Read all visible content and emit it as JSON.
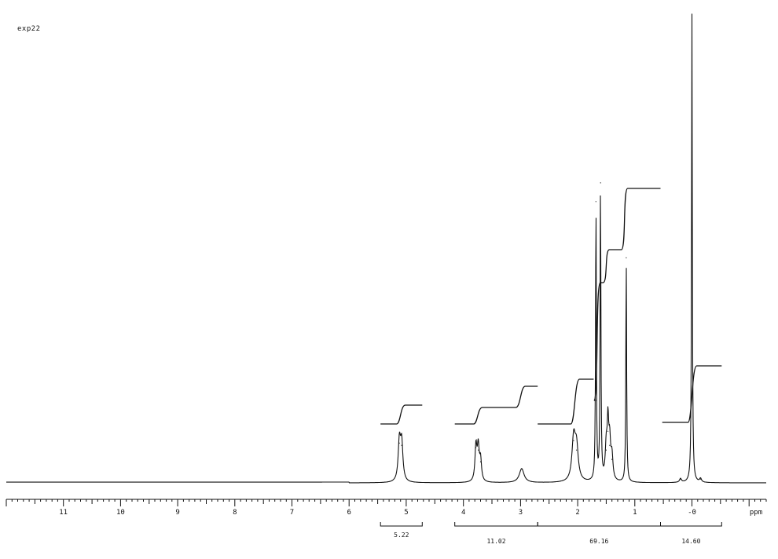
{
  "experiment_label": "exp22",
  "colors": {
    "ink": "#111111",
    "background": "#ffffff"
  },
  "chart_data": {
    "type": "line",
    "title": "",
    "xlabel": "ppm",
    "ylabel": "",
    "xlim": [
      12.0,
      -1.3
    ],
    "x_reversed": true,
    "grid": false,
    "x_ticks": [
      11,
      10,
      9,
      8,
      7,
      6,
      5,
      4,
      3,
      2,
      1,
      0
    ],
    "x_tick_labels": [
      "11",
      "10",
      "9",
      "8",
      "7",
      "6",
      "5",
      "4",
      "3",
      "2",
      "1",
      "-0"
    ],
    "series": [
      {
        "kind": "spectrum",
        "peaks": [
          {
            "ppm": 5.12,
            "height": 0.085,
            "width": 0.025
          },
          {
            "ppm": 5.08,
            "height": 0.08,
            "width": 0.025
          },
          {
            "ppm": 3.78,
            "height": 0.075,
            "width": 0.02
          },
          {
            "ppm": 3.74,
            "height": 0.07,
            "width": 0.02
          },
          {
            "ppm": 3.7,
            "height": 0.045,
            "width": 0.02
          },
          {
            "ppm": 2.98,
            "height": 0.03,
            "width": 0.05
          },
          {
            "ppm": 2.07,
            "height": 0.09,
            "width": 0.035
          },
          {
            "ppm": 2.02,
            "height": 0.07,
            "width": 0.035
          },
          {
            "ppm": 1.68,
            "height": 0.6,
            "width": 0.008
          },
          {
            "ppm": 1.6,
            "height": 0.64,
            "width": 0.008
          },
          {
            "ppm": 1.5,
            "height": 0.07,
            "width": 0.02
          },
          {
            "ppm": 1.47,
            "height": 0.11,
            "width": 0.015
          },
          {
            "ppm": 1.44,
            "height": 0.08,
            "width": 0.02
          },
          {
            "ppm": 1.4,
            "height": 0.05,
            "width": 0.02
          },
          {
            "ppm": 1.15,
            "height": 0.48,
            "width": 0.008
          },
          {
            "ppm": 0.0,
            "height": 1.0,
            "width": 0.008
          },
          {
            "ppm": -0.15,
            "height": 0.008,
            "width": 0.02
          },
          {
            "ppm": 0.2,
            "height": 0.008,
            "width": 0.02
          }
        ]
      }
    ],
    "integrals": [
      {
        "from": 5.45,
        "to": 4.72,
        "rise_at": 5.1,
        "rise": 0.04,
        "label": null
      },
      {
        "from": 4.15,
        "to": 2.7,
        "rise_at": 3.75,
        "rise": 0.035,
        "rise2_at": 3.0,
        "rise2": 0.045,
        "label": null
      },
      {
        "from": 2.7,
        "to": 1.72,
        "rise_at": 2.05,
        "rise": 0.095,
        "label": null
      },
      {
        "from": 1.68,
        "to": 0.55,
        "rise_at": 1.64,
        "steps": [
          {
            "at": 1.66,
            "rise": 0.25
          },
          {
            "at": 1.5,
            "rise": 0.07
          },
          {
            "at": 1.18,
            "rise": 0.13
          }
        ],
        "label": null
      },
      {
        "from": 0.52,
        "to": -0.52,
        "rise_at": 0.0,
        "rise": 0.12,
        "label": null
      }
    ],
    "integral_brackets": [
      {
        "from": 5.45,
        "to": 4.72,
        "value": "5.22"
      },
      {
        "from": 4.15,
        "to": 2.7,
        "value": "11.02"
      },
      {
        "from": 2.7,
        "to": 0.55,
        "value": "69.16"
      },
      {
        "from": 0.55,
        "to": -0.52,
        "value": "14.60"
      }
    ]
  }
}
